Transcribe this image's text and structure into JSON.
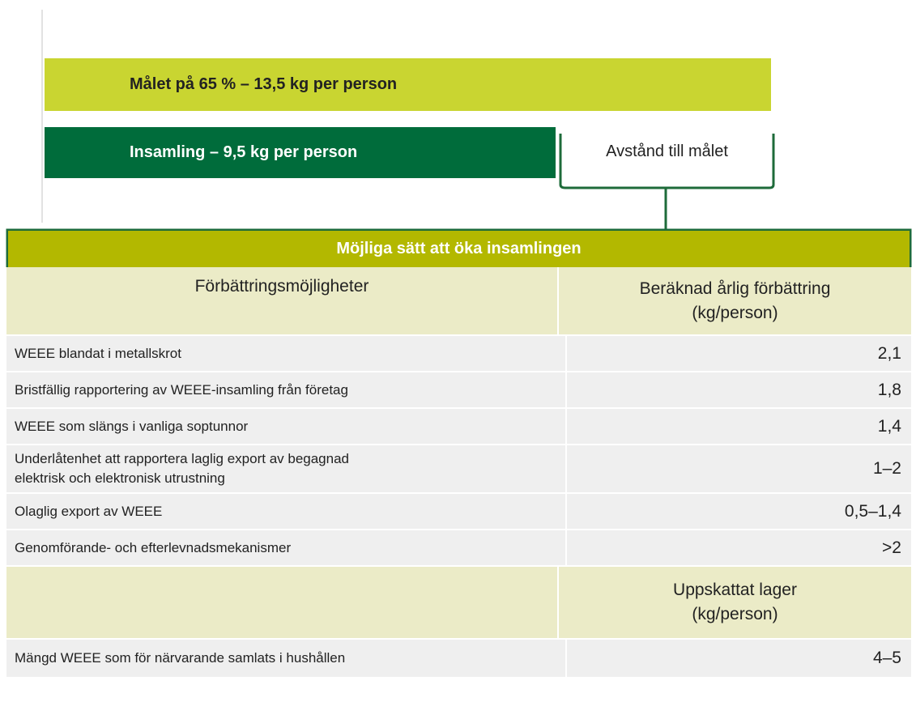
{
  "goal": "Målet på 65 % – 13,5 kg per person",
  "collection": "Insamling – 9,5 kg per person",
  "gap_label": "Avstånd till målet",
  "table": {
    "title": "Möjliga sätt att öka insamlingen",
    "headers": [
      "Förbättringsmöjligheter",
      "Beräknad årlig förbättring\n(kg/person)"
    ],
    "rows": [
      [
        "WEEE blandat i metallskrot",
        "2,1"
      ],
      [
        "Bristfällig rapportering av WEEE-insamling från företag",
        "1,8"
      ],
      [
        "WEEE som slängs i vanliga soptunnor",
        "1,4"
      ],
      [
        "Underlåtenhet att rapportera laglig export av begagnad\nelektrisk och elektronisk utrustning",
        "1–2"
      ],
      [
        "Olaglig export av WEEE",
        "0,5–1,4"
      ],
      [
        "Genomförande- och efterlevnadsmekanismer",
        ">2"
      ]
    ],
    "stock_header": "Uppskattat lager\n(kg/person)",
    "stock_rows": [
      [
        "Mängd WEEE som för närvarande samlats i hushållen",
        "4–5"
      ]
    ]
  }
}
